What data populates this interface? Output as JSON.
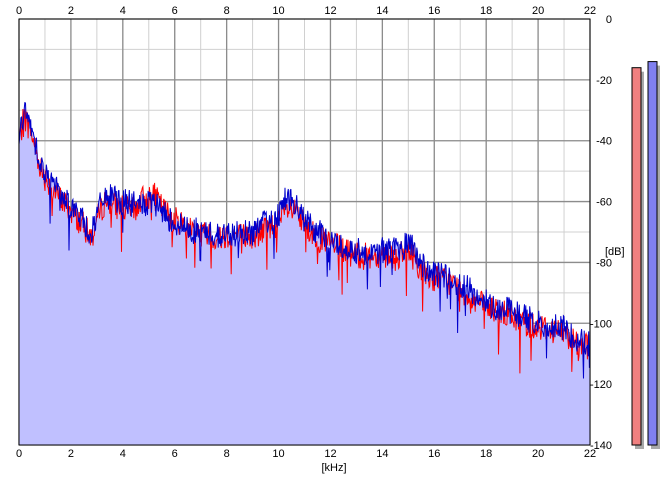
{
  "chart_data": {
    "type": "area",
    "xlabel": "[kHz]",
    "ylabel": "[dB]",
    "xlim": [
      0,
      22
    ],
    "ylim": [
      -140,
      0
    ],
    "x_ticks": [
      "0",
      "2",
      "4",
      "6",
      "8",
      "10",
      "12",
      "14",
      "16",
      "18",
      "20",
      "22"
    ],
    "y_ticks": [
      "0",
      "-20",
      "-40",
      "-60",
      "-80",
      "-100",
      "-120",
      "-140"
    ],
    "grid": true,
    "legend": "none",
    "series": [
      {
        "color": "#ff0000",
        "x": [
          0,
          0.2,
          0.5,
          0.8,
          1.0,
          1.5,
          2.0,
          2.5,
          2.8,
          3.0,
          3.3,
          3.6,
          4.0,
          4.4,
          4.8,
          5.2,
          5.6,
          6.0,
          6.5,
          7.0,
          7.5,
          8.0,
          8.5,
          9.0,
          9.5,
          10.0,
          10.3,
          10.6,
          11.0,
          11.5,
          12.0,
          12.5,
          13.0,
          13.5,
          14.0,
          14.5,
          15.0,
          15.2,
          15.6,
          16.0,
          16.5,
          17.0,
          17.5,
          18.0,
          18.5,
          19.0,
          19.5,
          20.0,
          20.5,
          21.0,
          21.5,
          22.0
        ],
        "values": [
          -40,
          -32,
          -38,
          -48,
          -52,
          -58,
          -63,
          -68,
          -72,
          -66,
          -60,
          -61,
          -62,
          -63,
          -59,
          -58,
          -63,
          -66,
          -68,
          -70,
          -72,
          -71,
          -71,
          -72,
          -69,
          -67,
          -63,
          -63,
          -68,
          -72,
          -74,
          -76,
          -78,
          -78,
          -77,
          -78,
          -77,
          -78,
          -84,
          -85,
          -86,
          -89,
          -92,
          -95,
          -96,
          -98,
          -100,
          -101,
          -102,
          -103,
          -106,
          -108
        ]
      },
      {
        "color": "#0000cc",
        "x": [
          0,
          0.2,
          0.5,
          0.8,
          1.0,
          1.5,
          2.0,
          2.5,
          2.8,
          3.0,
          3.3,
          3.6,
          4.0,
          4.4,
          4.8,
          5.2,
          5.6,
          6.0,
          6.5,
          7.0,
          7.5,
          8.0,
          8.5,
          9.0,
          9.5,
          10.0,
          10.3,
          10.6,
          11.0,
          11.5,
          12.0,
          12.5,
          13.0,
          13.5,
          14.0,
          14.5,
          15.0,
          15.2,
          15.6,
          16.0,
          16.5,
          17.0,
          17.5,
          18.0,
          18.5,
          19.0,
          19.5,
          20.0,
          20.5,
          21.0,
          21.5,
          22.0
        ],
        "values": [
          -38,
          -31,
          -36,
          -46,
          -51,
          -56,
          -61,
          -67,
          -71,
          -64,
          -58,
          -59,
          -60,
          -61,
          -61,
          -61,
          -64,
          -67,
          -69,
          -70,
          -71,
          -71,
          -70,
          -70,
          -67,
          -64,
          -58,
          -61,
          -66,
          -70,
          -73,
          -75,
          -76,
          -77,
          -76,
          -76,
          -74,
          -75,
          -82,
          -84,
          -85,
          -87,
          -90,
          -93,
          -95,
          -96,
          -98,
          -100,
          -101,
          -102,
          -105,
          -107
        ]
      }
    ],
    "level_meters": [
      {
        "color": "#f08080",
        "level_db": -16
      },
      {
        "color": "#8080f0",
        "level_db": -14
      }
    ],
    "fill_color": "#c0c0ff"
  }
}
